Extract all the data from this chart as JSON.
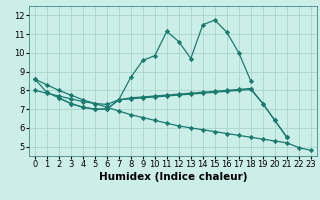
{
  "xlabel": "Humidex (Indice chaleur)",
  "bg_color": "#cceee8",
  "line_color": "#1a7a6e",
  "grid_color": "#aad4cc",
  "lines": [
    {
      "x": [
        0,
        1,
        2,
        3,
        4,
        5,
        6,
        7,
        8,
        9,
        10,
        11,
        12,
        13,
        14,
        15,
        16,
        17,
        18
      ],
      "y": [
        8.6,
        7.9,
        7.6,
        7.3,
        7.1,
        7.0,
        7.0,
        7.5,
        8.7,
        9.6,
        9.85,
        11.15,
        10.6,
        9.7,
        11.5,
        11.75,
        11.1,
        10.0,
        8.5
      ]
    },
    {
      "x": [
        0,
        1,
        2,
        3,
        4,
        5,
        6,
        7,
        8,
        9,
        10,
        11,
        12,
        13,
        14,
        15,
        16,
        17,
        18,
        19,
        20,
        21
      ],
      "y": [
        8.0,
        7.85,
        7.7,
        7.55,
        7.4,
        7.3,
        7.25,
        7.5,
        7.6,
        7.65,
        7.7,
        7.75,
        7.8,
        7.85,
        7.9,
        7.95,
        8.0,
        8.05,
        8.1,
        7.3,
        6.4,
        5.5
      ]
    },
    {
      "x": [
        2,
        3,
        4,
        5,
        6,
        7,
        8,
        9,
        10,
        11,
        12,
        13,
        14,
        15,
        16,
        17,
        18,
        19,
        20,
        21
      ],
      "y": [
        7.6,
        7.3,
        7.1,
        7.0,
        7.0,
        7.5,
        7.55,
        7.6,
        7.65,
        7.7,
        7.75,
        7.8,
        7.85,
        7.9,
        7.95,
        8.0,
        8.05,
        7.3,
        6.4,
        5.5
      ]
    },
    {
      "x": [
        0,
        1,
        2,
        3,
        4,
        5,
        6,
        7,
        8,
        9,
        10,
        11,
        12,
        13,
        14,
        15,
        16,
        17,
        18,
        19,
        20,
        21,
        22,
        23
      ],
      "y": [
        8.6,
        8.3,
        8.0,
        7.75,
        7.5,
        7.3,
        7.1,
        6.9,
        6.7,
        6.55,
        6.4,
        6.25,
        6.1,
        6.0,
        5.9,
        5.8,
        5.7,
        5.6,
        5.5,
        5.4,
        5.3,
        5.2,
        4.95,
        4.8
      ]
    }
  ],
  "xlim": [
    -0.5,
    23.5
  ],
  "ylim": [
    4.5,
    12.5
  ],
  "xticks": [
    0,
    1,
    2,
    3,
    4,
    5,
    6,
    7,
    8,
    9,
    10,
    11,
    12,
    13,
    14,
    15,
    16,
    17,
    18,
    19,
    20,
    21,
    22,
    23
  ],
  "yticks": [
    5,
    6,
    7,
    8,
    9,
    10,
    11,
    12
  ],
  "tick_fontsize": 6,
  "xlabel_fontsize": 7.5
}
